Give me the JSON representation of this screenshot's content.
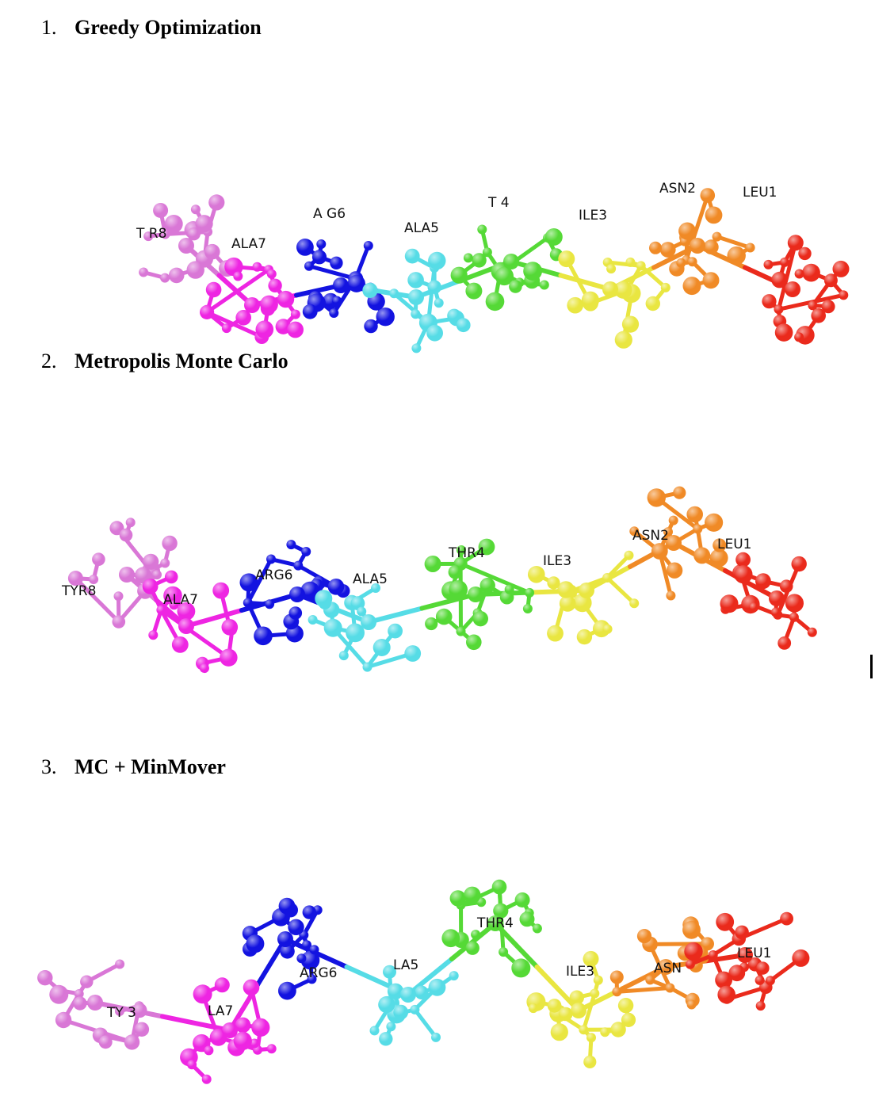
{
  "sections": [
    {
      "number": "1.",
      "title": "Greedy Optimization",
      "residues": [
        {
          "name": "TYR8",
          "label": "T  R8",
          "color": "#d977d6"
        },
        {
          "name": "ALA7",
          "label": "ALA7",
          "color": "#ee25e2"
        },
        {
          "name": "ARG6",
          "label": "A  G6",
          "color": "#1313e0"
        },
        {
          "name": "ALA5",
          "label": "ALA5",
          "color": "#56dce6"
        },
        {
          "name": "THR4",
          "label": "T   4",
          "color": "#55d936"
        },
        {
          "name": "ILE3",
          "label": "ILE3",
          "color": "#e9e641"
        },
        {
          "name": "ASN2",
          "label": "ASN2",
          "color": "#f08a26"
        },
        {
          "name": "LEU1",
          "label": "LEU1",
          "color": "#ea2a1c"
        }
      ]
    },
    {
      "number": "2.",
      "title": "Metropolis Monte Carlo",
      "residues": [
        {
          "name": "TYR8",
          "label": "TYR8",
          "color": "#d977d6"
        },
        {
          "name": "ALA7",
          "label": "ALA7",
          "color": "#ee25e2"
        },
        {
          "name": "ARG6",
          "label": "ARG6",
          "color": "#1313e0"
        },
        {
          "name": "ALA5",
          "label": "ALA5",
          "color": "#56dce6"
        },
        {
          "name": "THR4",
          "label": "THR4",
          "color": "#55d936"
        },
        {
          "name": "ILE3",
          "label": "ILE3",
          "color": "#e9e641"
        },
        {
          "name": "ASN2",
          "label": "ASN2",
          "color": "#f08a26"
        },
        {
          "name": "LEU1",
          "label": "LEU1",
          "color": "#ea2a1c"
        }
      ]
    },
    {
      "number": "3.",
      "title": "MC + MinMover",
      "residues": [
        {
          "name": "TYR8",
          "label": "TY  3",
          "color": "#d977d6"
        },
        {
          "name": "ALA7",
          "label": "LA7",
          "color": "#ee25e2"
        },
        {
          "name": "ARG6",
          "label": "ARG6",
          "color": "#1313e0"
        },
        {
          "name": "ALA5",
          "label": "LA5",
          "color": "#56dce6"
        },
        {
          "name": "THR4",
          "label": "THR4",
          "color": "#55d936"
        },
        {
          "name": "ILE3",
          "label": "ILE3",
          "color": "#e9e641"
        },
        {
          "name": "ASN2",
          "label": "ASN",
          "color": "#f08a26"
        },
        {
          "name": "LEU1",
          "label": "LEU1",
          "color": "#ea2a1c"
        }
      ]
    }
  ]
}
